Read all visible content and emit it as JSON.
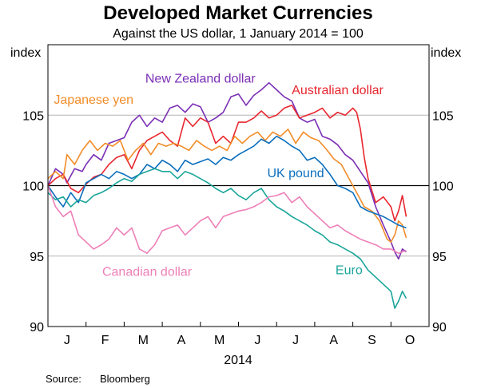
{
  "chart_data": {
    "type": "line",
    "title": "Developed Market Currencies",
    "subtitle": "Against the US dollar, 1 January 2014 = 100",
    "ylabel_left": "index",
    "ylabel_right": "index",
    "xlabel": "2014",
    "ylim": [
      90,
      110
    ],
    "yticks": [
      90,
      95,
      100,
      105
    ],
    "xlim": [
      0,
      10
    ],
    "xticks": [
      {
        "label": "J",
        "x": 0.5
      },
      {
        "label": "F",
        "x": 1.5
      },
      {
        "label": "M",
        "x": 2.5
      },
      {
        "label": "A",
        "x": 3.5
      },
      {
        "label": "M",
        "x": 4.5
      },
      {
        "label": "J",
        "x": 5.5
      },
      {
        "label": "J",
        "x": 6.5
      },
      {
        "label": "A",
        "x": 7.5
      },
      {
        "label": "S",
        "x": 8.5
      },
      {
        "label": "O",
        "x": 9.5
      }
    ],
    "reference_line": 100,
    "grid": "horizontal",
    "source_label": "Source:",
    "source_value": "Bloomberg",
    "series": [
      {
        "name": "New Zealand dollar",
        "color": "#7b2fb5",
        "x": [
          0,
          0.2,
          0.4,
          0.5,
          0.7,
          0.9,
          1.0,
          1.2,
          1.4,
          1.6,
          1.8,
          2.0,
          2.2,
          2.4,
          2.6,
          2.8,
          3.0,
          3.2,
          3.4,
          3.6,
          3.8,
          4.0,
          4.2,
          4.4,
          4.6,
          4.8,
          5.0,
          5.2,
          5.4,
          5.6,
          5.8,
          6.0,
          6.2,
          6.4,
          6.6,
          6.8,
          7.0,
          7.2,
          7.4,
          7.6,
          7.8,
          8.0,
          8.2,
          8.4,
          8.6,
          8.8,
          9.0,
          9.1,
          9.2,
          9.3,
          9.4
        ],
        "values": [
          100.0,
          101.2,
          100.8,
          100.2,
          101.2,
          101.0,
          101.5,
          102.2,
          101.8,
          103.0,
          103.2,
          103.4,
          104.5,
          105.0,
          104.2,
          104.8,
          104.5,
          105.5,
          105.7,
          105.2,
          105.8,
          105.6,
          104.5,
          104.8,
          105.2,
          106.3,
          106.5,
          105.7,
          106.4,
          106.8,
          107.3,
          106.8,
          106.3,
          106.0,
          104.8,
          104.5,
          104.7,
          103.5,
          103.3,
          102.9,
          102.2,
          101.8,
          101.0,
          100.2,
          98.5,
          97.2,
          96.0,
          95.3,
          94.8,
          95.5,
          95.3
        ]
      },
      {
        "name": "Australian dollar",
        "color": "#e8262f",
        "x": [
          0,
          0.2,
          0.4,
          0.6,
          0.8,
          1.0,
          1.2,
          1.4,
          1.6,
          1.8,
          2.0,
          2.2,
          2.4,
          2.6,
          2.8,
          3.0,
          3.2,
          3.4,
          3.6,
          3.8,
          4.0,
          4.2,
          4.4,
          4.6,
          4.8,
          5.0,
          5.2,
          5.4,
          5.6,
          5.8,
          6.0,
          6.2,
          6.4,
          6.6,
          6.8,
          7.0,
          7.2,
          7.4,
          7.6,
          7.8,
          8.0,
          8.1,
          8.2,
          8.3,
          8.4,
          8.6,
          8.8,
          9.0,
          9.1,
          9.2,
          9.3,
          9.4
        ],
        "values": [
          100.0,
          100.5,
          100.8,
          99.8,
          99.5,
          100.1,
          100.6,
          100.8,
          101.5,
          102.0,
          102.2,
          101.2,
          102.5,
          103.2,
          103.5,
          103.8,
          103.2,
          102.8,
          104.8,
          104.2,
          104.8,
          104.5,
          103.0,
          103.5,
          103.0,
          104.5,
          104.5,
          104.8,
          105.3,
          104.8,
          105.0,
          105.5,
          105.7,
          104.8,
          105.0,
          105.2,
          105.5,
          104.8,
          105.2,
          105.0,
          105.5,
          105.2,
          104.0,
          102.0,
          100.5,
          98.8,
          99.2,
          98.5,
          97.5,
          98.2,
          99.3,
          97.8
        ]
      },
      {
        "name": "Japanese yen",
        "color": "#f28c28",
        "x": [
          0,
          0.2,
          0.4,
          0.5,
          0.7,
          0.9,
          1.1,
          1.3,
          1.5,
          1.7,
          1.9,
          2.1,
          2.3,
          2.5,
          2.7,
          2.9,
          3.1,
          3.3,
          3.5,
          3.7,
          3.9,
          4.1,
          4.3,
          4.5,
          4.7,
          4.9,
          5.1,
          5.3,
          5.5,
          5.7,
          5.9,
          6.1,
          6.3,
          6.5,
          6.7,
          6.9,
          7.1,
          7.3,
          7.5,
          7.7,
          7.9,
          8.1,
          8.3,
          8.5,
          8.7,
          8.9,
          9.0,
          9.1,
          9.2,
          9.3,
          9.4
        ],
        "values": [
          100.5,
          101.0,
          100.5,
          102.2,
          101.5,
          102.5,
          103.2,
          102.5,
          103.0,
          102.8,
          103.2,
          101.8,
          102.5,
          103.0,
          102.2,
          103.0,
          102.8,
          103.0,
          102.8,
          102.5,
          103.2,
          102.8,
          102.5,
          102.8,
          102.5,
          103.5,
          103.0,
          103.5,
          103.8,
          103.2,
          103.8,
          103.5,
          104.0,
          103.0,
          103.8,
          103.4,
          103.2,
          102.6,
          101.9,
          101.5,
          100.5,
          99.5,
          98.5,
          98.2,
          97.5,
          96.2,
          96.0,
          96.5,
          97.5,
          97.2,
          96.3
        ]
      },
      {
        "name": "UK pound",
        "color": "#0a6ebd",
        "x": [
          0,
          0.2,
          0.4,
          0.6,
          0.8,
          1.0,
          1.2,
          1.4,
          1.6,
          1.8,
          2.0,
          2.2,
          2.4,
          2.6,
          2.8,
          3.0,
          3.2,
          3.4,
          3.6,
          3.8,
          4.0,
          4.2,
          4.4,
          4.6,
          4.8,
          5.0,
          5.2,
          5.4,
          5.6,
          5.8,
          6.0,
          6.2,
          6.4,
          6.6,
          6.8,
          7.0,
          7.2,
          7.4,
          7.6,
          7.8,
          8.0,
          8.2,
          8.4,
          8.6,
          8.8,
          9.0,
          9.2,
          9.4
        ],
        "values": [
          100.0,
          99.2,
          98.5,
          99.5,
          98.8,
          100.2,
          100.5,
          100.8,
          100.5,
          101.0,
          100.8,
          100.5,
          100.8,
          101.5,
          101.2,
          101.8,
          101.5,
          101.0,
          101.8,
          101.5,
          101.7,
          101.9,
          101.5,
          102.0,
          101.8,
          102.2,
          102.5,
          102.8,
          103.3,
          103.0,
          103.5,
          103.2,
          102.8,
          102.5,
          101.8,
          102.0,
          101.5,
          100.8,
          100.0,
          99.8,
          99.5,
          98.5,
          98.2,
          98.0,
          97.8,
          97.5,
          97.2,
          97.0
        ]
      },
      {
        "name": "Euro",
        "color": "#1aa59a",
        "x": [
          0,
          0.2,
          0.4,
          0.6,
          0.8,
          1.0,
          1.2,
          1.4,
          1.6,
          1.8,
          2.0,
          2.2,
          2.4,
          2.6,
          2.8,
          3.0,
          3.2,
          3.4,
          3.6,
          3.8,
          4.0,
          4.2,
          4.4,
          4.6,
          4.8,
          5.0,
          5.2,
          5.4,
          5.6,
          5.8,
          6.0,
          6.2,
          6.4,
          6.6,
          6.8,
          7.0,
          7.2,
          7.4,
          7.6,
          7.8,
          8.0,
          8.2,
          8.4,
          8.6,
          8.8,
          9.0,
          9.1,
          9.2,
          9.3,
          9.4
        ],
        "values": [
          99.5,
          99.0,
          99.2,
          98.5,
          99.0,
          98.8,
          99.3,
          99.5,
          99.8,
          100.2,
          100.5,
          100.3,
          100.8,
          101.0,
          101.2,
          101.0,
          101.0,
          100.5,
          101.0,
          100.8,
          100.5,
          100.2,
          99.8,
          99.5,
          99.8,
          99.3,
          99.0,
          99.5,
          99.8,
          99.0,
          98.5,
          98.2,
          97.8,
          97.5,
          97.2,
          96.8,
          96.5,
          96.0,
          95.8,
          95.5,
          95.2,
          94.8,
          94.0,
          93.5,
          93.0,
          92.5,
          91.3,
          91.8,
          92.5,
          92.0
        ]
      },
      {
        "name": "Canadian dollar",
        "color": "#ee7fb8",
        "x": [
          0,
          0.2,
          0.4,
          0.6,
          0.8,
          1.0,
          1.2,
          1.4,
          1.6,
          1.8,
          2.0,
          2.2,
          2.4,
          2.6,
          2.8,
          3.0,
          3.2,
          3.4,
          3.6,
          3.8,
          4.0,
          4.2,
          4.4,
          4.6,
          4.8,
          5.0,
          5.2,
          5.4,
          5.6,
          5.8,
          6.0,
          6.2,
          6.4,
          6.6,
          6.8,
          7.0,
          7.2,
          7.4,
          7.6,
          7.8,
          8.0,
          8.2,
          8.4,
          8.6,
          8.8,
          9.0,
          9.2,
          9.4
        ],
        "values": [
          100.0,
          98.5,
          97.8,
          98.2,
          96.5,
          96.0,
          95.5,
          95.8,
          96.2,
          97.0,
          96.5,
          97.0,
          95.5,
          95.2,
          95.8,
          96.8,
          97.0,
          97.2,
          96.5,
          97.0,
          97.5,
          97.8,
          97.0,
          97.8,
          98.0,
          98.2,
          98.3,
          98.5,
          98.8,
          99.2,
          99.3,
          99.5,
          98.8,
          99.2,
          98.5,
          98.0,
          97.5,
          97.0,
          97.2,
          96.8,
          96.5,
          96.2,
          96.0,
          95.8,
          95.5,
          95.5,
          95.2,
          95.4
        ]
      }
    ]
  },
  "labels": [
    {
      "series": 0,
      "text": "New Zealand dollar",
      "x": 4.0,
      "y": 107.3,
      "anchor": "middle"
    },
    {
      "series": 1,
      "text": "Australian dollar",
      "x": 7.6,
      "y": 106.5,
      "anchor": "middle"
    },
    {
      "series": 2,
      "text": "Japanese yen",
      "x": 1.2,
      "y": 105.8,
      "anchor": "middle"
    },
    {
      "series": 3,
      "text": "UK pound",
      "x": 6.5,
      "y": 100.6,
      "anchor": "middle"
    },
    {
      "series": 4,
      "text": "Euro",
      "x": 7.9,
      "y": 93.7,
      "anchor": "middle"
    },
    {
      "series": 5,
      "text": "Canadian dollar",
      "x": 2.6,
      "y": 93.6,
      "anchor": "middle"
    }
  ]
}
